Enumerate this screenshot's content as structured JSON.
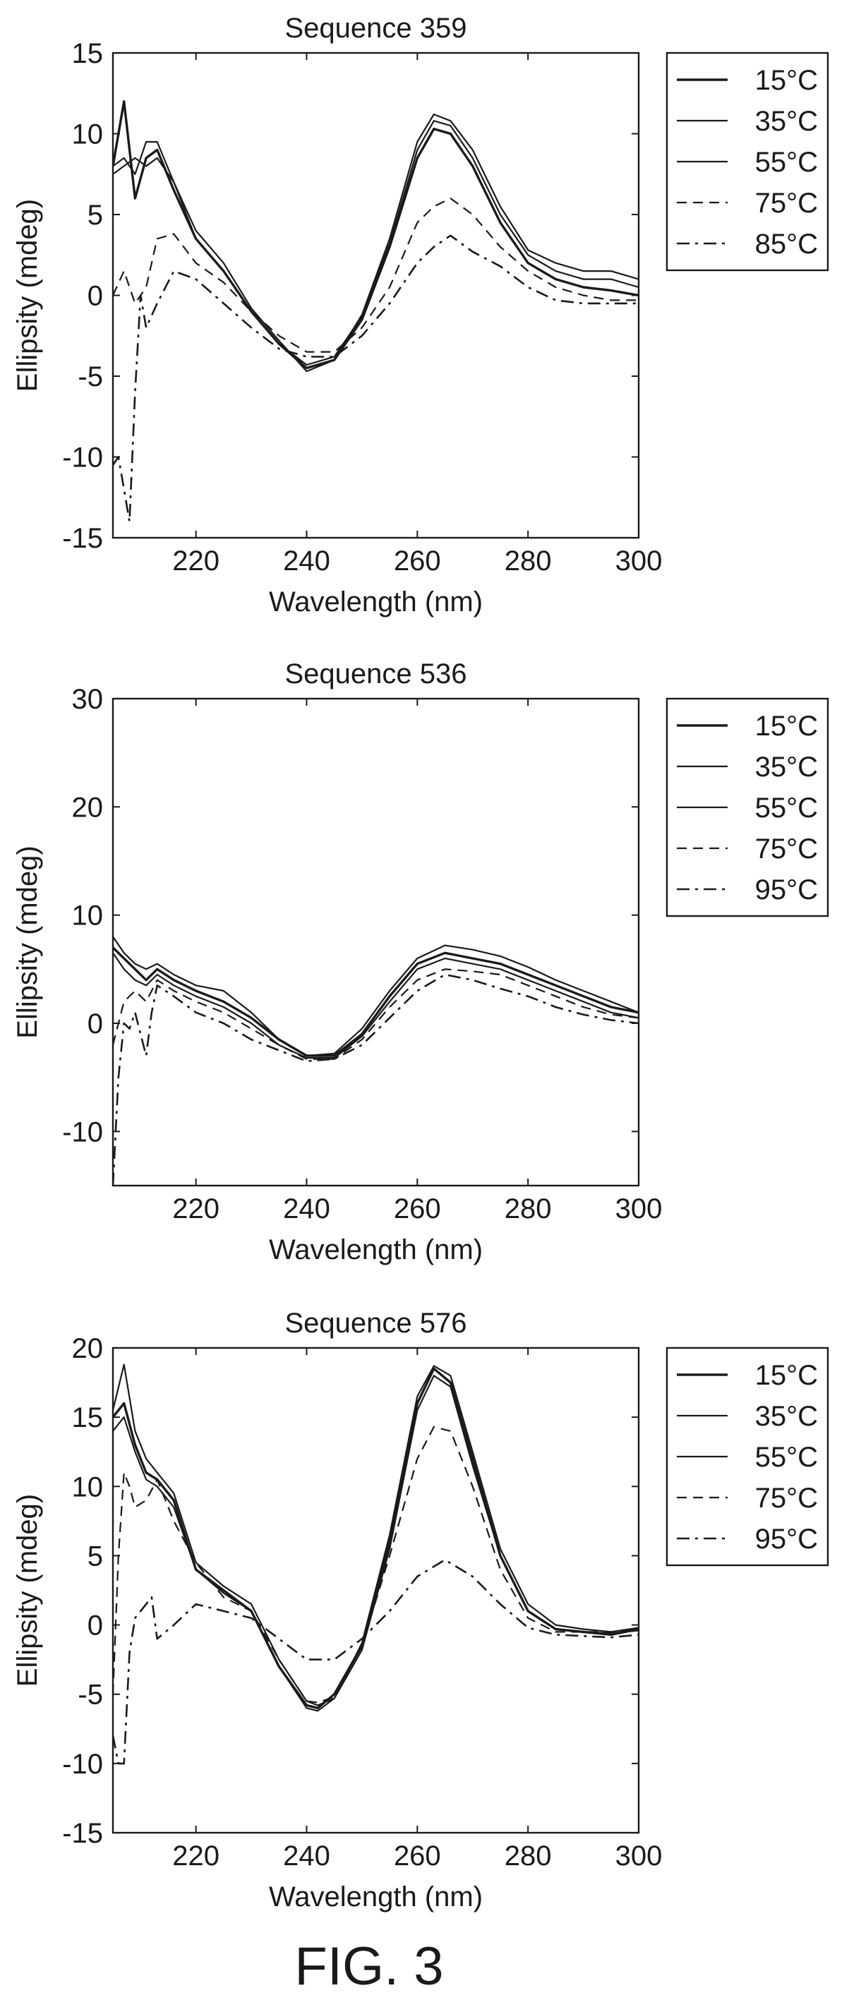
{
  "figure": {
    "caption": "FIG. 3",
    "colors": {
      "ink": "#1a1a1a",
      "background": "#ffffff"
    }
  },
  "chart_data": [
    {
      "type": "line",
      "title": "Sequence 359",
      "xlabel": "Wavelength (nm)",
      "ylabel": "Ellipsity (mdeg)",
      "xlim": [
        205,
        300
      ],
      "ylim": [
        -15,
        15
      ],
      "xticks": [
        220,
        240,
        260,
        280,
        300
      ],
      "yticks": [
        15,
        10,
        5,
        0,
        -5,
        -10,
        -15
      ],
      "grid": false,
      "legend_position": "right",
      "series": [
        {
          "name": "15°C",
          "style": "solid-heavy",
          "x": [
            205,
            207,
            209,
            211,
            213,
            216,
            220,
            225,
            230,
            235,
            240,
            245,
            250,
            255,
            260,
            263,
            266,
            270,
            275,
            280,
            285,
            290,
            295,
            300
          ],
          "y": [
            8,
            12,
            6,
            8.5,
            9,
            6.5,
            3.5,
            1.5,
            -1,
            -3,
            -4.5,
            -4,
            -1.5,
            3,
            8.5,
            10.3,
            10,
            8,
            4.5,
            2,
            1,
            0.5,
            0.3,
            0
          ]
        },
        {
          "name": "35°C",
          "style": "solid",
          "x": [
            205,
            207,
            209,
            211,
            213,
            216,
            220,
            225,
            230,
            235,
            240,
            245,
            250,
            255,
            260,
            263,
            266,
            270,
            275,
            280,
            285,
            290,
            295,
            300
          ],
          "y": [
            8,
            8.5,
            7.5,
            9.5,
            9.5,
            7,
            4,
            2,
            -0.8,
            -2.8,
            -4.7,
            -4,
            -1.2,
            3.5,
            9.5,
            11.2,
            10.8,
            9,
            5.5,
            2.8,
            2,
            1.5,
            1.5,
            1
          ]
        },
        {
          "name": "55°C",
          "style": "solid",
          "x": [
            205,
            207,
            209,
            211,
            213,
            216,
            220,
            225,
            230,
            235,
            240,
            245,
            250,
            255,
            260,
            263,
            266,
            270,
            275,
            280,
            285,
            290,
            295,
            300
          ],
          "y": [
            7.5,
            8,
            8.5,
            8,
            8.5,
            7,
            3.5,
            1.5,
            -1,
            -3,
            -4.3,
            -3.8,
            -1.3,
            3.2,
            9,
            10.8,
            10.5,
            8.5,
            5,
            2.5,
            1.5,
            1,
            1,
            0.5
          ]
        },
        {
          "name": "75°C",
          "style": "dashed",
          "x": [
            205,
            207,
            209,
            211,
            213,
            216,
            220,
            225,
            230,
            235,
            240,
            245,
            250,
            255,
            260,
            263,
            266,
            270,
            275,
            280,
            285,
            290,
            295,
            300
          ],
          "y": [
            0,
            1.5,
            -0.5,
            0.5,
            3.5,
            3.8,
            2,
            0.8,
            -1,
            -2.5,
            -3.5,
            -3.5,
            -2,
            0.5,
            4.5,
            5.5,
            6,
            5,
            3,
            1.5,
            0.5,
            0,
            -0.3,
            -0.3
          ]
        },
        {
          "name": "85°C",
          "style": "dash-dot",
          "x": [
            205,
            206,
            207,
            208,
            209,
            210,
            211,
            213,
            216,
            220,
            225,
            230,
            235,
            240,
            245,
            250,
            255,
            260,
            263,
            266,
            270,
            275,
            280,
            285,
            290,
            295,
            300
          ],
          "y": [
            -10.5,
            -10,
            -12,
            -14,
            -6,
            0,
            -2,
            -0.5,
            1.5,
            1,
            -0.5,
            -2,
            -3.3,
            -3.8,
            -3.8,
            -2.5,
            -0.5,
            2,
            3,
            3.7,
            2.7,
            1.8,
            0.5,
            -0.3,
            -0.5,
            -0.5,
            -0.5
          ]
        }
      ]
    },
    {
      "type": "line",
      "title": "Sequence 536",
      "xlabel": "Wavelength (nm)",
      "ylabel": "Ellipsity (mdeg)",
      "xlim": [
        205,
        300
      ],
      "ylim": [
        -15,
        30
      ],
      "xticks": [
        220,
        240,
        260,
        280,
        300
      ],
      "yticks": [
        30,
        20,
        10,
        0,
        -10
      ],
      "grid": false,
      "legend_position": "right",
      "series": [
        {
          "name": "15°C",
          "style": "solid-heavy",
          "x": [
            205,
            207,
            209,
            211,
            213,
            216,
            220,
            225,
            230,
            235,
            240,
            245,
            250,
            255,
            260,
            265,
            270,
            275,
            280,
            285,
            290,
            295,
            300
          ],
          "y": [
            7,
            6,
            5,
            4,
            5,
            4,
            3,
            2,
            0.5,
            -1.5,
            -3,
            -3,
            -1,
            2.5,
            5.5,
            6.5,
            6,
            5.5,
            4.5,
            3.5,
            2.5,
            1.5,
            1
          ]
        },
        {
          "name": "35°C",
          "style": "solid",
          "x": [
            205,
            207,
            209,
            211,
            213,
            216,
            220,
            225,
            230,
            235,
            240,
            245,
            250,
            255,
            260,
            265,
            270,
            275,
            280,
            285,
            290,
            295,
            300
          ],
          "y": [
            8,
            6.5,
            5.5,
            5,
            5.5,
            4.5,
            3.5,
            3,
            1,
            -1.5,
            -3,
            -2.8,
            -0.5,
            3,
            6,
            7.2,
            6.8,
            6.2,
            5.2,
            4,
            3,
            2,
            1
          ]
        },
        {
          "name": "55°C",
          "style": "solid",
          "x": [
            205,
            207,
            209,
            211,
            213,
            216,
            220,
            225,
            230,
            235,
            240,
            245,
            250,
            255,
            260,
            265,
            270,
            275,
            280,
            285,
            290,
            295,
            300
          ],
          "y": [
            6.5,
            5,
            4,
            3.5,
            4.5,
            3.5,
            2.5,
            1.5,
            0,
            -2,
            -3.2,
            -3.2,
            -1.2,
            2,
            5,
            6,
            5.5,
            5,
            4,
            3,
            2,
            1,
            0.5
          ]
        },
        {
          "name": "75°C",
          "style": "dashed",
          "x": [
            205,
            207,
            209,
            211,
            213,
            216,
            220,
            225,
            230,
            235,
            240,
            245,
            250,
            255,
            260,
            265,
            270,
            275,
            280,
            285,
            290,
            295,
            300
          ],
          "y": [
            -2,
            2,
            3,
            2,
            4,
            3,
            2,
            1,
            -0.5,
            -2,
            -3.3,
            -3.3,
            -1.5,
            1.5,
            4,
            5,
            4.8,
            4.5,
            3.5,
            2.5,
            1.5,
            0.8,
            0.5
          ]
        },
        {
          "name": "95°C",
          "style": "dash-dot",
          "x": [
            205,
            206,
            207,
            208,
            209,
            210,
            211,
            212,
            213,
            216,
            220,
            225,
            230,
            235,
            240,
            245,
            250,
            255,
            260,
            265,
            270,
            275,
            280,
            285,
            290,
            295,
            300
          ],
          "y": [
            -15,
            -5,
            0,
            -0.5,
            1,
            -1,
            -3,
            1,
            3.5,
            2.5,
            1,
            0,
            -1.5,
            -2.5,
            -3.5,
            -3.3,
            -2,
            0.5,
            3,
            4.5,
            4,
            3.2,
            2.5,
            1.5,
            0.8,
            0.3,
            0
          ]
        }
      ]
    },
    {
      "type": "line",
      "title": "Sequence 576",
      "xlabel": "Wavelength (nm)",
      "ylabel": "Ellipsity (mdeg)",
      "xlim": [
        205,
        300
      ],
      "ylim": [
        -15,
        20
      ],
      "xticks": [
        220,
        240,
        260,
        280,
        300
      ],
      "yticks": [
        20,
        15,
        10,
        5,
        0,
        -5,
        -10,
        -15
      ],
      "grid": false,
      "legend_position": "right",
      "series": [
        {
          "name": "15°C",
          "style": "solid-heavy",
          "x": [
            205,
            207,
            209,
            211,
            213,
            216,
            220,
            225,
            230,
            235,
            240,
            242,
            245,
            250,
            255,
            260,
            263,
            266,
            270,
            275,
            280,
            285,
            290,
            295,
            300
          ],
          "y": [
            15,
            16,
            13,
            11,
            10.5,
            9,
            4,
            2.5,
            1,
            -3,
            -5.8,
            -6,
            -5,
            -1.5,
            6,
            16,
            18.5,
            17.5,
            12,
            5,
            1,
            -0.3,
            -0.5,
            -0.7,
            -0.3
          ]
        },
        {
          "name": "35°C",
          "style": "solid",
          "x": [
            205,
            207,
            209,
            211,
            213,
            216,
            220,
            225,
            230,
            235,
            240,
            242,
            245,
            250,
            255,
            260,
            263,
            266,
            270,
            275,
            280,
            285,
            290,
            295,
            300
          ],
          "y": [
            15.5,
            18.8,
            14,
            12,
            11,
            9.5,
            4.5,
            2.8,
            1.5,
            -2.5,
            -5.5,
            -5.8,
            -5.3,
            -1.3,
            6.5,
            16.5,
            18.7,
            18,
            12.5,
            5.5,
            1.5,
            0,
            -0.3,
            -0.5,
            -0.2
          ]
        },
        {
          "name": "55°C",
          "style": "solid",
          "x": [
            205,
            207,
            209,
            211,
            213,
            216,
            220,
            225,
            230,
            235,
            240,
            242,
            245,
            250,
            255,
            260,
            263,
            266,
            270,
            275,
            280,
            285,
            290,
            295,
            300
          ],
          "y": [
            14,
            15,
            12.5,
            10.5,
            10,
            8.5,
            4,
            2.3,
            1,
            -3,
            -6,
            -6.2,
            -5.3,
            -1.8,
            5.5,
            15.5,
            18,
            17.2,
            11.5,
            5,
            1,
            -0.3,
            -0.5,
            -0.6,
            -0.4
          ]
        },
        {
          "name": "75°C",
          "style": "dashed",
          "x": [
            205,
            206,
            207,
            208,
            209,
            211,
            213,
            216,
            220,
            225,
            230,
            235,
            240,
            242,
            245,
            250,
            255,
            260,
            263,
            266,
            270,
            275,
            280,
            285,
            290,
            295,
            300
          ],
          "y": [
            -5,
            5,
            11,
            10,
            8.5,
            9,
            10.5,
            7.5,
            4.5,
            2,
            1,
            -2.5,
            -5.5,
            -5.6,
            -5.2,
            -1.5,
            5,
            12,
            14.3,
            14,
            10,
            4,
            0.5,
            -0.5,
            -0.5,
            -0.5,
            -0.3
          ]
        },
        {
          "name": "95°C",
          "style": "dash-dot",
          "x": [
            205,
            206,
            207,
            208,
            209,
            210,
            211,
            212,
            213,
            216,
            220,
            225,
            230,
            235,
            240,
            245,
            250,
            255,
            260,
            265,
            270,
            275,
            280,
            285,
            290,
            295,
            300
          ],
          "y": [
            -8,
            -10,
            -10,
            -2,
            0.5,
            1,
            1.5,
            2,
            -1,
            0,
            1.5,
            1,
            0.5,
            -1,
            -2.5,
            -2.5,
            -1,
            1,
            3.5,
            4.7,
            3.5,
            1.5,
            -0.2,
            -0.7,
            -0.8,
            -0.9,
            -0.7
          ]
        }
      ]
    }
  ]
}
